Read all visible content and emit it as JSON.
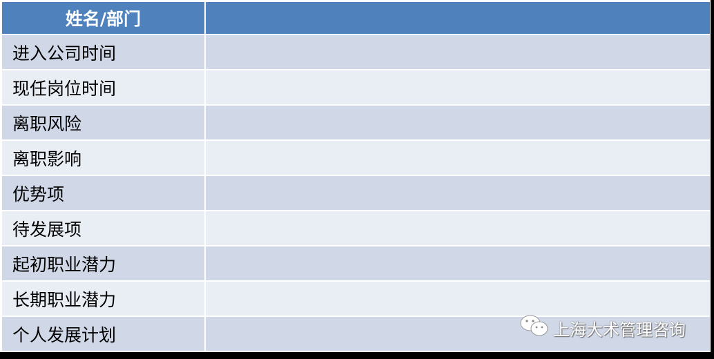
{
  "header": {
    "label": "姓名/部门",
    "value": ""
  },
  "rows": [
    {
      "label": "进入公司时间",
      "value": ""
    },
    {
      "label": "现任岗位时间",
      "value": ""
    },
    {
      "label": "离职风险",
      "value": ""
    },
    {
      "label": "离职影响",
      "value": ""
    },
    {
      "label": "优势项",
      "value": ""
    },
    {
      "label": "待发展项",
      "value": ""
    },
    {
      "label": "起初职业潜力",
      "value": ""
    },
    {
      "label": "长期职业潜力",
      "value": ""
    },
    {
      "label": "个人发展计划",
      "value": ""
    }
  ],
  "watermark": {
    "icon": "wechat-icon",
    "text": "上海大术管理咨询"
  },
  "colors": {
    "header": "#4F81BD",
    "row_dark": "#D0D8E8",
    "row_light": "#E9EDF4"
  }
}
